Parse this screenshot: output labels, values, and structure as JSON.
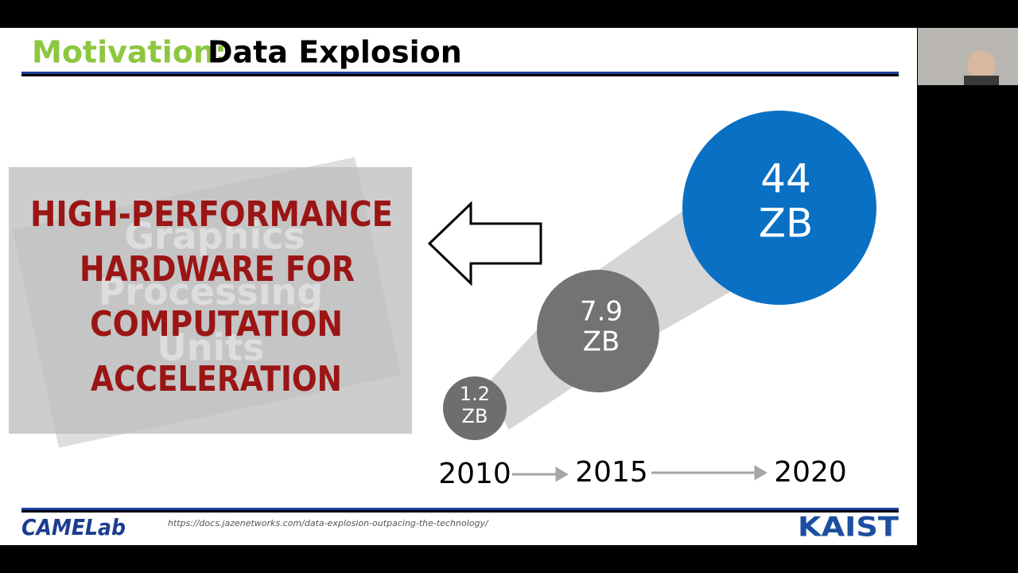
{
  "header": {
    "title_prefix": "Motivation:",
    "title": "Data Explosion"
  },
  "image": {
    "lines": [
      "HIGH-PERFORMANCE",
      "HARDWARE FOR",
      "COMPUTATION",
      "ACCELERATION"
    ],
    "watermark": [
      "Graphics",
      "Processing",
      "Units"
    ]
  },
  "bubbles": [
    {
      "value": "1.2",
      "unit": "ZB"
    },
    {
      "value": "7.9",
      "unit": "ZB"
    },
    {
      "value": "44",
      "unit": "ZB"
    }
  ],
  "years": [
    "2010",
    "2015",
    "2020"
  ],
  "footer": {
    "left_logo": "CAMELab",
    "source": "https://docs.jazenetworks.com/data-explosion-outpacing-the-technology/",
    "right_logo": "KAIST"
  }
}
